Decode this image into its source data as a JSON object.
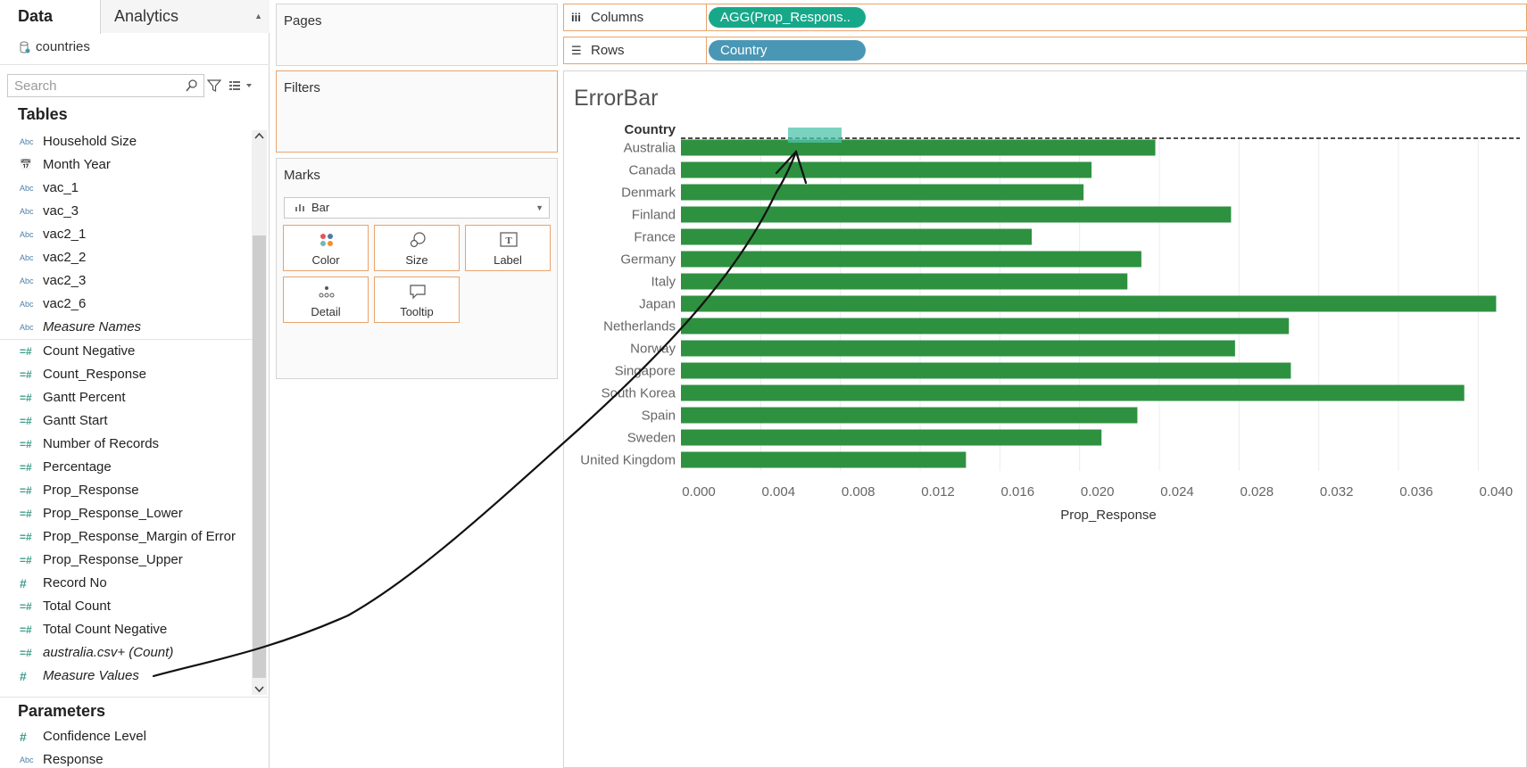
{
  "data_pane": {
    "tab_data": "Data",
    "tab_analytics": "Analytics",
    "datasource": "countries",
    "search_placeholder": "Search",
    "tables_title": "Tables",
    "dimensions": [
      {
        "name": "Household Size",
        "type": "abc",
        "italic": false
      },
      {
        "name": "Month Year",
        "type": "date",
        "italic": false
      },
      {
        "name": "vac_1",
        "type": "abc",
        "italic": false
      },
      {
        "name": "vac_3",
        "type": "abc",
        "italic": false
      },
      {
        "name": "vac2_1",
        "type": "abc",
        "italic": false
      },
      {
        "name": "vac2_2",
        "type": "abc",
        "italic": false
      },
      {
        "name": "vac2_3",
        "type": "abc",
        "italic": false
      },
      {
        "name": "vac2_6",
        "type": "abc",
        "italic": false
      },
      {
        "name": "Measure Names",
        "type": "abc",
        "italic": true
      }
    ],
    "measures": [
      {
        "name": "Count Negative",
        "type": "calc",
        "italic": false
      },
      {
        "name": "Count_Response",
        "type": "calc",
        "italic": false
      },
      {
        "name": "Gantt Percent",
        "type": "calc",
        "italic": false
      },
      {
        "name": "Gantt Start",
        "type": "calc",
        "italic": false
      },
      {
        "name": "Number of Records",
        "type": "calc",
        "italic": false
      },
      {
        "name": "Percentage",
        "type": "calc",
        "italic": false
      },
      {
        "name": "Prop_Response",
        "type": "calc",
        "italic": false
      },
      {
        "name": "Prop_Response_Lower",
        "type": "calc",
        "italic": false
      },
      {
        "name": "Prop_Response_Margin of Error",
        "type": "calc",
        "italic": false
      },
      {
        "name": "Prop_Response_Upper",
        "type": "calc",
        "italic": false
      },
      {
        "name": "Record No",
        "type": "num",
        "italic": false
      },
      {
        "name": "Total Count",
        "type": "calc",
        "italic": false
      },
      {
        "name": "Total Count Negative",
        "type": "calc",
        "italic": false
      },
      {
        "name": "australia.csv+ (Count)",
        "type": "calc",
        "italic": true
      },
      {
        "name": "Measure Values",
        "type": "num",
        "italic": true
      }
    ],
    "parameters_title": "Parameters",
    "parameters": [
      {
        "name": "Confidence Level",
        "type": "num",
        "italic": false
      },
      {
        "name": "Response",
        "type": "abc",
        "italic": false
      }
    ]
  },
  "cards": {
    "pages": "Pages",
    "filters": "Filters",
    "marks": "Marks",
    "mark_type": "Bar",
    "mark_buttons": [
      "Color",
      "Size",
      "Label",
      "Detail",
      "Tooltip"
    ]
  },
  "shelves": {
    "columns_label": "Columns",
    "columns_pill": "AGG(Prop_Respons..",
    "rows_label": "Rows",
    "rows_pill": "Country"
  },
  "sheet": {
    "title": "ErrorBar"
  },
  "colors": {
    "bar": "#2e9140",
    "columns_pill": "#17a88a",
    "rows_pill": "#4a97b5",
    "shelf_border": "#e8a36d"
  },
  "chart_data": {
    "type": "bar",
    "orientation": "horizontal",
    "row_header": "Country",
    "xlabel": "Prop_Response",
    "categories": [
      "Australia",
      "Canada",
      "Denmark",
      "Finland",
      "France",
      "Germany",
      "Italy",
      "Japan",
      "Netherlands",
      "Norway",
      "Singapore",
      "South Korea",
      "Spain",
      "Sweden",
      "United Kingdom"
    ],
    "values": [
      0.0238,
      0.0206,
      0.0202,
      0.0276,
      0.0176,
      0.0231,
      0.0224,
      0.0409,
      0.0305,
      0.0278,
      0.0306,
      0.0393,
      0.0229,
      0.0211,
      0.0143
    ],
    "xlim": [
      0,
      0.042
    ],
    "xticks": [
      "0.000",
      "0.004",
      "0.008",
      "0.012",
      "0.016",
      "0.020",
      "0.024",
      "0.028",
      "0.032",
      "0.036",
      "0.040"
    ],
    "tick_values": [
      0,
      0.004,
      0.008,
      0.012,
      0.016,
      0.02,
      0.024,
      0.028,
      0.032,
      0.036,
      0.04
    ],
    "grid": true
  }
}
